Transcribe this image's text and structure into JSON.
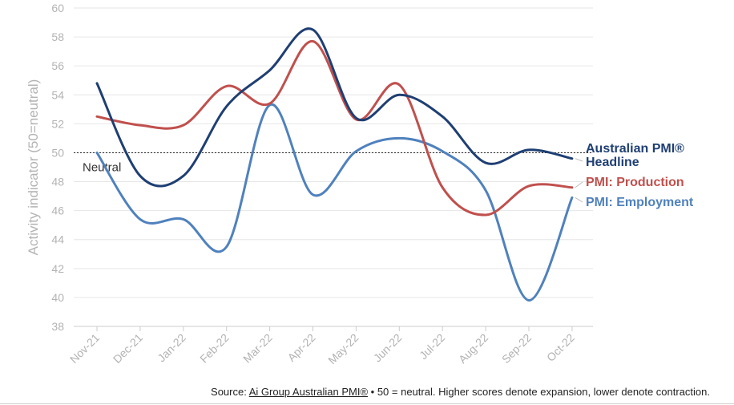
{
  "chart_data": {
    "type": "line",
    "title": "",
    "xlabel": "",
    "ylabel": "Activity indicator (50=neutral)",
    "ylim": [
      38,
      60
    ],
    "ytick_step": 2,
    "categories": [
      "Nov-21",
      "Dec-21",
      "Jan-22",
      "Feb-22",
      "Mar-22",
      "Apr-22",
      "May-22",
      "Jun-22",
      "Jul-22",
      "Aug-22",
      "Sep-22",
      "Oct-22"
    ],
    "reference_line": {
      "value": 50,
      "label": "Neutral"
    },
    "series": [
      {
        "name": "Australian PMI® Headline",
        "label_lines": [
          "Australian PMI®",
          "Headline"
        ],
        "color": "#1f3f73",
        "values": [
          54.8,
          48.4,
          48.4,
          53.2,
          55.7,
          58.5,
          52.4,
          54.0,
          52.5,
          49.3,
          50.2,
          49.6
        ]
      },
      {
        "name": "PMI: Production",
        "label_lines": [
          "PMI: Production"
        ],
        "color": "#c0504d",
        "values": [
          52.5,
          51.9,
          51.9,
          54.6,
          53.4,
          57.7,
          52.3,
          54.7,
          47.6,
          45.7,
          47.7,
          47.6
        ]
      },
      {
        "name": "PMI: Employment",
        "label_lines": [
          "PMI: Employment"
        ],
        "color": "#4f81bd",
        "values": [
          50.0,
          45.4,
          45.4,
          43.5,
          53.3,
          47.1,
          50.1,
          51.0,
          50.1,
          47.4,
          39.8,
          46.9
        ]
      }
    ]
  },
  "footer": {
    "prefix": "Source: ",
    "link_text": "Ai Group Australian PMI®",
    "suffix": " • 50 = neutral. Higher scores denote expansion, lower denote contraction."
  }
}
